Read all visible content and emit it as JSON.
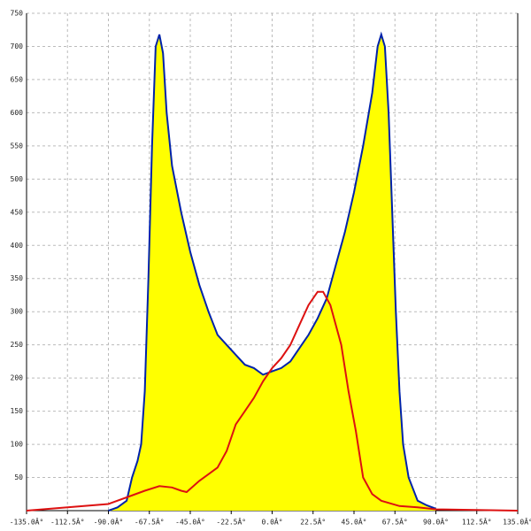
{
  "chart_data": {
    "type": "area-line",
    "xlim": [
      -135,
      135
    ],
    "ylim": [
      0,
      750
    ],
    "xticks": [
      {
        "value": -135,
        "label": "-135.0Â°"
      },
      {
        "value": -112.5,
        "label": "-112.5Â°"
      },
      {
        "value": -90,
        "label": "-90.0Â°"
      },
      {
        "value": -67.5,
        "label": "-67.5Â°"
      },
      {
        "value": -45,
        "label": "-45.0Â°"
      },
      {
        "value": -22.5,
        "label": "-22.5Â°"
      },
      {
        "value": 0,
        "label": "0.0Â°"
      },
      {
        "value": 22.5,
        "label": "22.5Â°"
      },
      {
        "value": 45,
        "label": "45.0Â°"
      },
      {
        "value": 67.5,
        "label": "67.5Â°"
      },
      {
        "value": 90,
        "label": "90.0Â°"
      },
      {
        "value": 112.5,
        "label": "112.5Â°"
      },
      {
        "value": 135,
        "label": "135.0Â°"
      }
    ],
    "yticks": [
      50,
      100,
      150,
      200,
      250,
      300,
      350,
      400,
      450,
      500,
      550,
      600,
      650,
      700,
      750
    ],
    "grid": true,
    "series": [
      {
        "color": "#0022aa",
        "fill": "#ffff00",
        "x": [
          -90,
          -85,
          -80,
          -77,
          -74,
          -72,
          -70,
          -68,
          -66,
          -64,
          -62,
          -60,
          -58,
          -55,
          -50,
          -45,
          -40,
          -35,
          -30,
          -25,
          -20,
          -15,
          -10,
          -5,
          0,
          5,
          10,
          15,
          20,
          25,
          30,
          35,
          40,
          45,
          50,
          55,
          58,
          60,
          62,
          64,
          66,
          68,
          70,
          72,
          75,
          80,
          85,
          90
        ],
        "values": [
          0,
          5,
          15,
          50,
          75,
          100,
          180,
          350,
          550,
          700,
          718,
          690,
          600,
          520,
          450,
          390,
          340,
          300,
          265,
          250,
          235,
          220,
          215,
          205,
          210,
          215,
          225,
          245,
          265,
          290,
          320,
          370,
          420,
          480,
          550,
          630,
          700,
          718,
          700,
          600,
          450,
          300,
          180,
          100,
          50,
          15,
          8,
          3
        ]
      },
      {
        "color": "#dd1111",
        "x": [
          -135,
          -90,
          -80,
          -70,
          -62,
          -55,
          -50,
          -47,
          -40,
          -35,
          -30,
          -25,
          -20,
          -15,
          -10,
          -5,
          0,
          5,
          10,
          15,
          20,
          25,
          28,
          32,
          38,
          42,
          46,
          50,
          55,
          60,
          70,
          80,
          90,
          135
        ],
        "values": [
          0,
          10,
          20,
          30,
          37,
          35,
          30,
          28,
          45,
          55,
          65,
          90,
          130,
          150,
          170,
          195,
          215,
          230,
          250,
          280,
          310,
          330,
          330,
          310,
          250,
          180,
          120,
          50,
          25,
          15,
          7,
          5,
          2,
          0
        ]
      }
    ]
  }
}
